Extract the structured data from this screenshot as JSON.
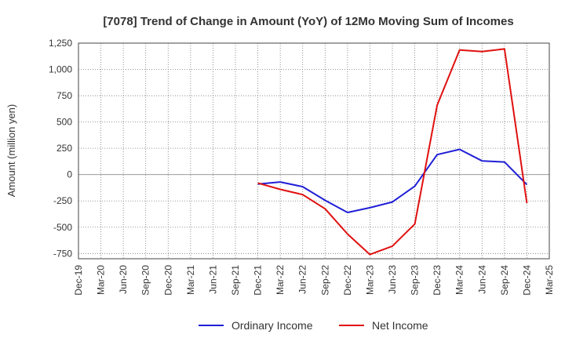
{
  "chart_data": {
    "type": "line",
    "title": "[7078]  Trend of Change in Amount (YoY) of 12Mo Moving Sum of Incomes",
    "ylabel": "Amount (million yen)",
    "xlabel": "",
    "ylim": [
      -800,
      1250
    ],
    "yticks": [
      -750,
      -500,
      -250,
      0,
      250,
      500,
      750,
      1000,
      1250
    ],
    "ytick_labels": [
      "-750",
      "-500",
      "-250",
      "0",
      "250",
      "500",
      "750",
      "1,000",
      "1,250"
    ],
    "x_tick_labels": [
      "Dec-19",
      "Mar-20",
      "Jun-20",
      "Sep-20",
      "Dec-20",
      "Mar-21",
      "Jun-21",
      "Sep-21",
      "Dec-21",
      "Mar-22",
      "Jun-22",
      "Sep-22",
      "Dec-22",
      "Mar-23",
      "Jun-23",
      "Sep-23",
      "Dec-23",
      "Mar-24",
      "Jun-24",
      "Sep-24",
      "Dec-24",
      "Mar-25"
    ],
    "grid": true,
    "legend_position": "bottom",
    "series": [
      {
        "name": "Ordinary Income",
        "color": "#1f1fd6",
        "x": [
          "Dec-21",
          "Mar-22",
          "Jun-22",
          "Sep-22",
          "Dec-22",
          "Mar-23",
          "Jun-23",
          "Sep-23",
          "Dec-23",
          "Mar-24",
          "Jun-24",
          "Sep-24",
          "Dec-24"
        ],
        "values": [
          -90,
          -70,
          -115,
          -245,
          -360,
          -315,
          -260,
          -110,
          190,
          240,
          130,
          120,
          -95
        ]
      },
      {
        "name": "Net Income",
        "color": "#e01010",
        "x": [
          "Dec-21",
          "Mar-22",
          "Jun-22",
          "Sep-22",
          "Dec-22",
          "Mar-23",
          "Jun-23",
          "Sep-23",
          "Dec-23",
          "Mar-24",
          "Jun-24",
          "Sep-24",
          "Dec-24"
        ],
        "values": [
          -80,
          -140,
          -190,
          -325,
          -565,
          -760,
          -680,
          -470,
          660,
          1185,
          1170,
          1195,
          -270
        ]
      }
    ]
  }
}
